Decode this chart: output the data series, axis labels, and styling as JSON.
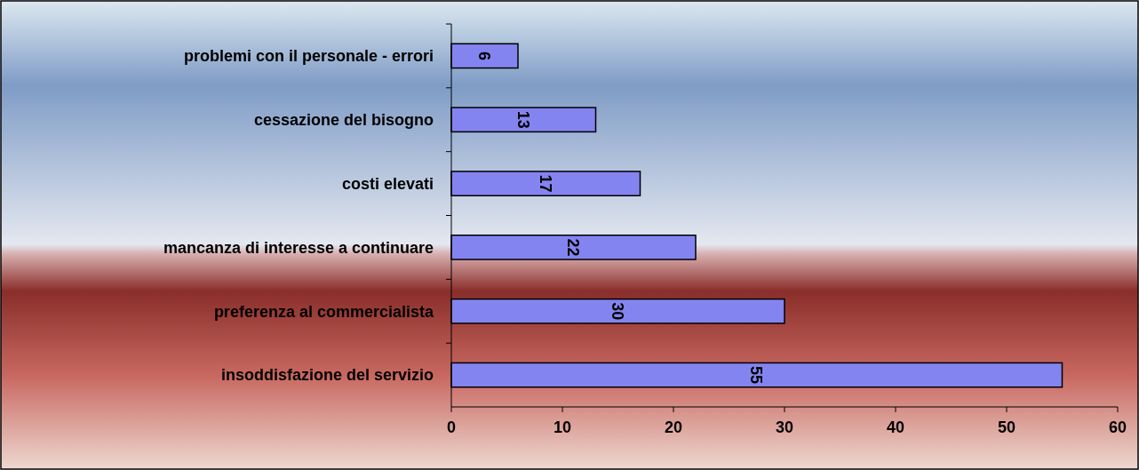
{
  "chart_data": {
    "type": "bar",
    "orientation": "horizontal",
    "categories": [
      "problemi con il personale - errori",
      "cessazione del bisogno",
      "costi elevati",
      "mancanza di interesse a continuare",
      "preferenza al commercialista",
      "insoddisfazione del servizio"
    ],
    "values": [
      6,
      13,
      17,
      22,
      30,
      55
    ],
    "color": "#8484f0",
    "xlim": [
      0,
      60
    ],
    "xticks": [
      0,
      10,
      20,
      30,
      40,
      50,
      60
    ],
    "grid": false,
    "data_labels": true
  }
}
